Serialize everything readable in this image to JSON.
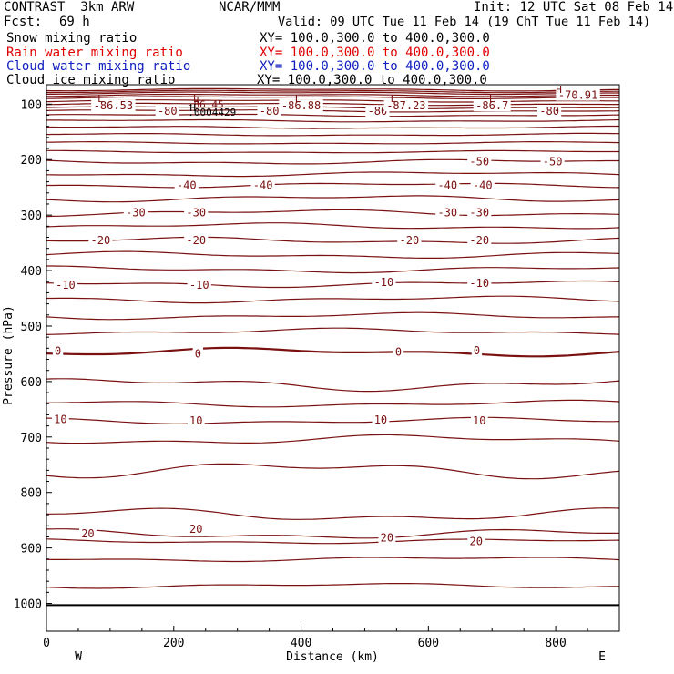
{
  "header": {
    "title": "CONTRAST  3km ARW",
    "org": "NCAR/MMM",
    "init": "Init: 12 UTC Sat 08 Feb 14",
    "fcst_label": "Fcst:",
    "fcst_value": "69 h",
    "valid": "Valid: 09 UTC Tue 11 Feb 14 (19 ChT Tue 11 Feb 14)"
  },
  "fields": [
    {
      "name": "Snow mixing ratio",
      "xy": "XY= 100.0,300.0 to 400.0,300.0",
      "color": "#000000"
    },
    {
      "name": "Rain water mixing ratio",
      "xy": "XY= 100.0,300.0 to 400.0,300.0",
      "color": "#e00000"
    },
    {
      "name": "Cloud water mixing ratio",
      "xy": "XY= 100.0,300.0 to 400.0,300.0",
      "color": "#1020c0"
    },
    {
      "name": "Cloud ice mixing ratio",
      "xy": "XY= 100.0,300.0 to 400.0,300.0",
      "color": "#000000"
    }
  ],
  "chart_data": {
    "type": "line",
    "xlabel": "Distance (km)",
    "ylabel": "Pressure (hPa)",
    "xlim": [
      0,
      900
    ],
    "ylim": [
      1050,
      65
    ],
    "xticks": [
      "0",
      "200",
      "400",
      "600",
      "800"
    ],
    "xtick_values": [
      0,
      200,
      400,
      600,
      800
    ],
    "yticks": [
      "100",
      "200",
      "300",
      "400",
      "500",
      "600",
      "700",
      "800",
      "900",
      "1000"
    ],
    "ytick_values": [
      100,
      200,
      300,
      400,
      500,
      600,
      700,
      800,
      900,
      1000
    ],
    "direction_labels": {
      "left": "W",
      "right": "E"
    },
    "line_color": "#7a1010",
    "grid": false,
    "contour_labels": [
      {
        "text": "-86.53",
        "x": 105,
        "p": 103
      },
      {
        "text": "-80",
        "x": 190,
        "p": 113
      },
      {
        "text": "-80",
        "x": 350,
        "p": 113
      },
      {
        "text": "-86.88",
        "x": 400,
        "p": 103
      },
      {
        "text": "-80",
        "x": 520,
        "p": 113
      },
      {
        "text": "-87.23",
        "x": 565,
        "p": 103
      },
      {
        "text": "-86.7",
        "x": 700,
        "p": 103
      },
      {
        "text": "-80",
        "x": 790,
        "p": 113
      },
      {
        "text": "-70.91",
        "x": 835,
        "p": 84
      },
      {
        "text": "-50",
        "x": 680,
        "p": 204
      },
      {
        "text": "-50",
        "x": 795,
        "p": 204
      },
      {
        "text": "-40",
        "x": 220,
        "p": 246
      },
      {
        "text": "-40",
        "x": 340,
        "p": 246
      },
      {
        "text": "-40",
        "x": 630,
        "p": 246
      },
      {
        "text": "-40",
        "x": 685,
        "p": 246
      },
      {
        "text": "-30",
        "x": 140,
        "p": 296
      },
      {
        "text": "-30",
        "x": 235,
        "p": 296
      },
      {
        "text": "-30",
        "x": 630,
        "p": 296
      },
      {
        "text": "-30",
        "x": 680,
        "p": 296
      },
      {
        "text": "-20",
        "x": 85,
        "p": 346
      },
      {
        "text": "-20",
        "x": 235,
        "p": 346
      },
      {
        "text": "-20",
        "x": 570,
        "p": 346
      },
      {
        "text": "-20",
        "x": 680,
        "p": 346
      },
      {
        "text": "-10",
        "x": 30,
        "p": 426
      },
      {
        "text": "-10",
        "x": 240,
        "p": 426
      },
      {
        "text": "-10",
        "x": 530,
        "p": 421
      },
      {
        "text": "-10",
        "x": 680,
        "p": 423
      },
      {
        "text": "0",
        "x": 18,
        "p": 545
      },
      {
        "text": "0",
        "x": 238,
        "p": 550
      },
      {
        "text": "0",
        "x": 553,
        "p": 547
      },
      {
        "text": "0",
        "x": 676,
        "p": 544
      },
      {
        "text": "10",
        "x": 22,
        "p": 668
      },
      {
        "text": "10",
        "x": 235,
        "p": 671
      },
      {
        "text": "10",
        "x": 525,
        "p": 669
      },
      {
        "text": "10",
        "x": 680,
        "p": 671
      },
      {
        "text": "20",
        "x": 65,
        "p": 874
      },
      {
        "text": "20",
        "x": 235,
        "p": 866
      },
      {
        "text": "20",
        "x": 535,
        "p": 882
      },
      {
        "text": "20",
        "x": 675,
        "p": 888
      }
    ],
    "extrema_labels": [
      {
        "text": "L",
        "x": 85,
        "p": 90
      },
      {
        "text": "L",
        "x": 235,
        "p": 90
      },
      {
        "text": "L",
        "x": 395,
        "p": 90
      },
      {
        "text": "L",
        "x": 545,
        "p": 90
      },
      {
        "text": "L",
        "x": 700,
        "p": 90
      },
      {
        "text": "H",
        "x": 805,
        "p": 73
      },
      {
        "text": "L",
        "x": 240,
        "p": 93
      },
      {
        "text": "-86.45",
        "x": 250,
        "p": 100
      },
      {
        "text": "H",
        "x": 230,
        "p": 106
      },
      {
        "text": ".0004429",
        "x": 260,
        "p": 114
      }
    ],
    "isotherm_values": [
      -80,
      -70,
      -60,
      -50,
      -40,
      -30,
      -20,
      -10,
      0,
      10,
      20
    ],
    "surface_pressure": 1003
  }
}
